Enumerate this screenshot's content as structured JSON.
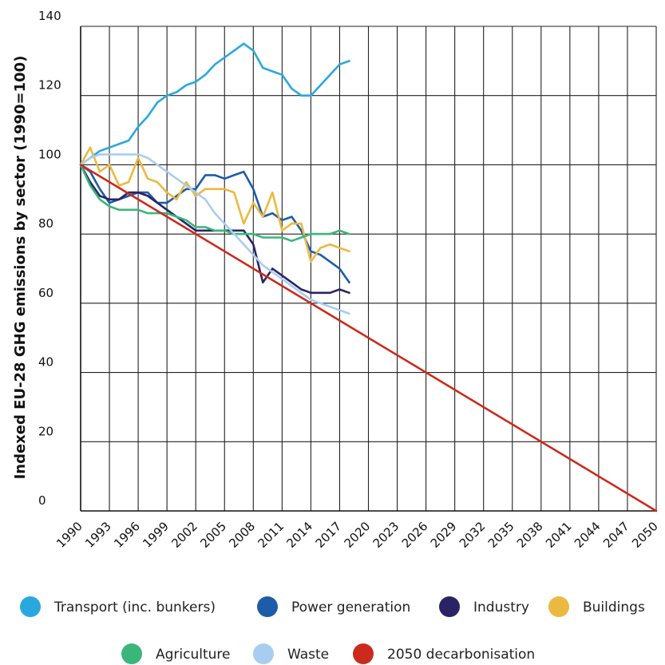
{
  "chart_data": {
    "type": "line",
    "title": "",
    "ylabel": "Indexed EU-28 GHG emissions by sector (1990=100)",
    "xlabel": "",
    "xlim": [
      1990,
      2050
    ],
    "ylim": [
      0,
      140
    ],
    "y_ticks": [
      0,
      20,
      40,
      60,
      80,
      100,
      120,
      140
    ],
    "x_ticks": [
      1990,
      1993,
      1996,
      1999,
      2002,
      2005,
      2008,
      2011,
      2014,
      2017,
      2020,
      2023,
      2026,
      2029,
      2032,
      2035,
      2038,
      2041,
      2044,
      2047,
      2050
    ],
    "grid": true,
    "legend_position": "bottom",
    "series": [
      {
        "name": "Transport (inc. bunkers)",
        "color": "#29a8e0",
        "x": [
          1990,
          1991,
          1992,
          1993,
          1994,
          1995,
          1996,
          1997,
          1998,
          1999,
          2000,
          2001,
          2002,
          2003,
          2004,
          2005,
          2006,
          2007,
          2008,
          2009,
          2010,
          2011,
          2012,
          2013,
          2014,
          2015,
          2016,
          2017,
          2018
        ],
        "values": [
          100,
          102,
          104,
          105,
          106,
          107,
          111,
          114,
          118,
          120,
          121,
          123,
          124,
          126,
          129,
          131,
          133,
          135,
          133,
          128,
          127,
          126,
          122,
          120,
          120,
          123,
          126,
          129,
          130
        ]
      },
      {
        "name": "Power generation",
        "color": "#1d5ca8",
        "x": [
          1990,
          1991,
          1992,
          1993,
          1994,
          1995,
          1996,
          1997,
          1998,
          1999,
          2000,
          2001,
          2002,
          2003,
          2004,
          2005,
          2006,
          2007,
          2008,
          2009,
          2010,
          2011,
          2012,
          2013,
          2014,
          2015,
          2016,
          2017,
          2018
        ],
        "values": [
          100,
          98,
          93,
          89,
          90,
          91,
          92,
          92,
          89,
          89,
          91,
          93,
          93,
          97,
          97,
          96,
          97,
          98,
          93,
          85,
          86,
          84,
          85,
          81,
          75,
          74,
          72,
          70,
          66
        ]
      },
      {
        "name": "Industry",
        "color": "#2a2466",
        "x": [
          1990,
          1991,
          1992,
          1993,
          1994,
          1995,
          1996,
          1997,
          1998,
          1999,
          2000,
          2001,
          2002,
          2003,
          2004,
          2005,
          2006,
          2007,
          2008,
          2009,
          2010,
          2011,
          2012,
          2013,
          2014,
          2015,
          2016,
          2017,
          2018
        ],
        "values": [
          100,
          95,
          91,
          90,
          90,
          92,
          92,
          91,
          89,
          87,
          85,
          83,
          81,
          81,
          81,
          81,
          81,
          81,
          77,
          66,
          70,
          68,
          66,
          64,
          63,
          63,
          63,
          64,
          63
        ]
      },
      {
        "name": "Buildings",
        "color": "#ecb940",
        "x": [
          1990,
          1991,
          1992,
          1993,
          1994,
          1995,
          1996,
          1997,
          1998,
          1999,
          2000,
          2001,
          2002,
          2003,
          2004,
          2005,
          2006,
          2007,
          2008,
          2009,
          2010,
          2011,
          2012,
          2013,
          2014,
          2015,
          2016,
          2017,
          2018
        ],
        "values": [
          100,
          105,
          98,
          100,
          94,
          95,
          102,
          96,
          95,
          92,
          90,
          95,
          91,
          93,
          93,
          93,
          92,
          83,
          89,
          85,
          92,
          81,
          83,
          83,
          72,
          76,
          77,
          76,
          75
        ]
      },
      {
        "name": "Agriculture",
        "color": "#3ab67a",
        "x": [
          1990,
          1991,
          1992,
          1993,
          1994,
          1995,
          1996,
          1997,
          1998,
          1999,
          2000,
          2001,
          2002,
          2003,
          2004,
          2005,
          2006,
          2007,
          2008,
          2009,
          2010,
          2011,
          2012,
          2013,
          2014,
          2015,
          2016,
          2017,
          2018
        ],
        "values": [
          100,
          94,
          90,
          88,
          87,
          87,
          87,
          86,
          86,
          86,
          85,
          84,
          82,
          82,
          81,
          81,
          80,
          80,
          80,
          79,
          79,
          79,
          78,
          79,
          80,
          80,
          80,
          81,
          80
        ]
      },
      {
        "name": "Waste",
        "color": "#a9cdf0",
        "x": [
          1990,
          1991,
          1992,
          1993,
          1994,
          1995,
          1996,
          1997,
          1998,
          1999,
          2000,
          2001,
          2002,
          2003,
          2004,
          2005,
          2006,
          2007,
          2008,
          2009,
          2010,
          2011,
          2012,
          2013,
          2014,
          2015,
          2016,
          2017,
          2018
        ],
        "values": [
          100,
          102,
          103,
          103,
          103,
          103,
          103,
          102,
          100,
          98,
          96,
          94,
          92,
          90,
          86,
          83,
          80,
          77,
          74,
          71,
          69,
          67,
          65,
          63,
          61,
          60,
          59,
          58,
          57
        ]
      },
      {
        "name": "2050 decarbonisation",
        "color": "#cc2a1c",
        "x": [
          1990,
          2050
        ],
        "values": [
          100,
          0
        ]
      }
    ]
  }
}
